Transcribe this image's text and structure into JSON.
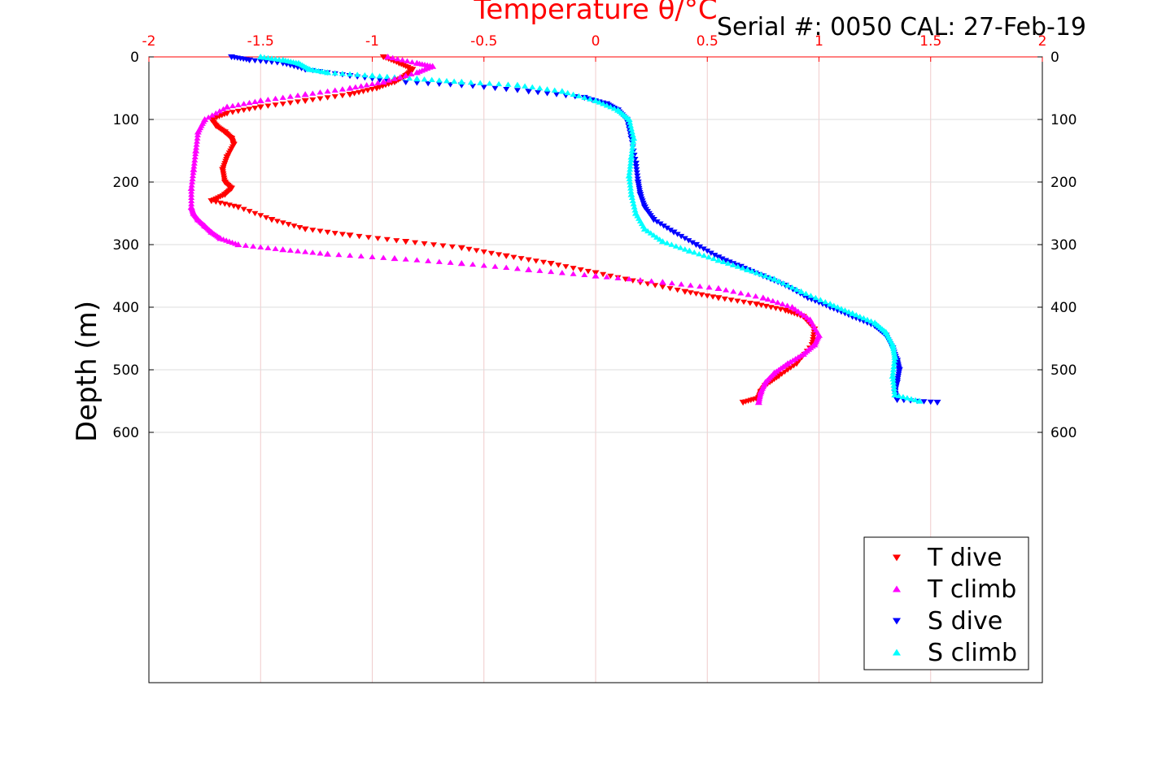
{
  "chart_data": {
    "type": "scatter",
    "title": "Temperature θ/°C",
    "header_text": "Serial #: 0050  CAL: 27-Feb-19",
    "ylabel": "Depth (m)",
    "xlim": [
      -2,
      2
    ],
    "ylim": [
      0,
      1000
    ],
    "y_reversed": true,
    "x_axis_position": "top",
    "x_ticks": [
      -2,
      -1.5,
      -1,
      -0.5,
      0,
      0.5,
      1,
      1.5,
      2
    ],
    "x_tick_labels": [
      "-2",
      "-1.5",
      "-1",
      "-0.5",
      "0",
      "0.5",
      "1",
      "1.5",
      "2"
    ],
    "y_ticks": [
      0,
      100,
      200,
      300,
      400,
      500,
      600
    ],
    "y_tick_labels": [
      "0",
      "100",
      "200",
      "300",
      "400",
      "500",
      "600"
    ],
    "grid": true,
    "legend_position": "bottom-right",
    "series": [
      {
        "name": "T dive",
        "color": "#ff0000",
        "marker": "triangle-down",
        "x": [
          -0.95,
          -0.88,
          -0.82,
          -0.85,
          -0.9,
          -0.98,
          -1.1,
          -1.3,
          -1.5,
          -1.65,
          -1.72,
          -1.7,
          -1.66,
          -1.63,
          -1.62,
          -1.65,
          -1.67,
          -1.66,
          -1.63,
          -1.66,
          -1.72,
          -1.6,
          -1.45,
          -1.3,
          -1.1,
          -0.85,
          -0.6,
          -0.4,
          -0.2,
          0.0,
          0.2,
          0.4,
          0.55,
          0.72,
          0.85,
          0.93,
          0.98,
          0.97,
          0.9,
          0.82,
          0.76,
          0.74,
          0.73,
          0.66
        ],
        "y": [
          0,
          10,
          20,
          30,
          40,
          50,
          60,
          70,
          80,
          90,
          100,
          110,
          120,
          130,
          140,
          160,
          180,
          200,
          210,
          220,
          230,
          240,
          260,
          275,
          285,
          295,
          305,
          318,
          330,
          345,
          360,
          375,
          385,
          395,
          405,
          415,
          435,
          460,
          490,
          510,
          525,
          535,
          545,
          552
        ]
      },
      {
        "name": "T climb",
        "color": "#ff00ff",
        "marker": "triangle-up",
        "x": [
          -0.93,
          -0.8,
          -0.73,
          -0.8,
          -0.95,
          -1.1,
          -1.3,
          -1.5,
          -1.65,
          -1.75,
          -1.78,
          -1.79,
          -1.8,
          -1.81,
          -1.81,
          -1.8,
          -1.78,
          -1.75,
          -1.72,
          -1.68,
          -1.6,
          -1.4,
          -1.2,
          -0.9,
          -0.6,
          -0.3,
          0.0,
          0.3,
          0.55,
          0.75,
          0.88,
          0.96,
          1.0,
          0.98,
          0.93,
          0.86,
          0.8,
          0.76,
          0.74,
          0.73
        ],
        "y": [
          0,
          10,
          15,
          25,
          40,
          50,
          60,
          70,
          80,
          100,
          120,
          150,
          180,
          210,
          240,
          250,
          260,
          270,
          280,
          290,
          300,
          308,
          315,
          322,
          330,
          340,
          350,
          360,
          370,
          385,
          400,
          420,
          445,
          460,
          475,
          490,
          505,
          520,
          535,
          552
        ]
      },
      {
        "name": "S dive",
        "color": "#0000ff",
        "marker": "triangle-down",
        "x": [
          -1.63,
          -1.55,
          -1.4,
          -1.3,
          -1.1,
          -0.9,
          -0.6,
          -0.3,
          -0.05,
          0.05,
          0.1,
          0.14,
          0.16,
          0.18,
          0.19,
          0.2,
          0.22,
          0.26,
          0.35,
          0.45,
          0.55,
          0.65,
          0.75,
          0.85,
          0.95,
          1.05,
          1.15,
          1.25,
          1.3,
          1.33,
          1.35,
          1.36,
          1.35,
          1.34,
          1.35,
          1.53
        ],
        "y": [
          0,
          5,
          10,
          20,
          30,
          40,
          45,
          55,
          65,
          75,
          85,
          100,
          130,
          170,
          200,
          220,
          240,
          260,
          280,
          300,
          320,
          335,
          350,
          365,
          385,
          400,
          415,
          430,
          445,
          465,
          485,
          500,
          520,
          535,
          548,
          552
        ]
      },
      {
        "name": "S climb",
        "color": "#00ffff",
        "marker": "triangle-up",
        "x": [
          -1.5,
          -1.4,
          -1.33,
          -1.28,
          -1.2,
          -1.0,
          -0.8,
          -0.6,
          -0.35,
          -0.15,
          0.0,
          0.1,
          0.15,
          0.17,
          0.16,
          0.15,
          0.16,
          0.18,
          0.22,
          0.3,
          0.42,
          0.55,
          0.68,
          0.8,
          0.92,
          1.05,
          1.15,
          1.25,
          1.3,
          1.33,
          1.34,
          1.33,
          1.34,
          1.45
        ],
        "y": [
          0,
          5,
          10,
          20,
          25,
          30,
          35,
          40,
          45,
          55,
          70,
          85,
          100,
          130,
          160,
          190,
          220,
          250,
          275,
          295,
          310,
          325,
          340,
          355,
          375,
          395,
          410,
          425,
          440,
          460,
          480,
          510,
          540,
          550
        ]
      }
    ]
  }
}
